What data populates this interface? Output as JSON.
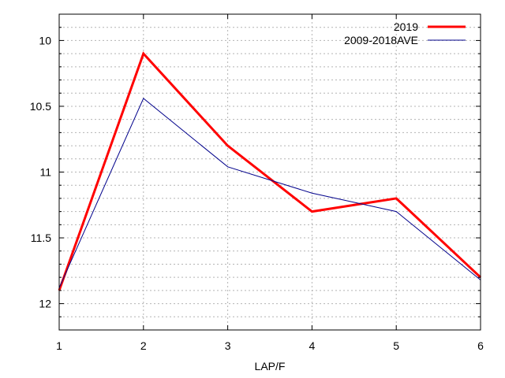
{
  "chart_data": {
    "type": "line",
    "title": "",
    "xlabel": "LAP/F",
    "ylabel": "",
    "x": [
      1,
      2,
      3,
      4,
      5,
      6
    ],
    "xlim": [
      1,
      6
    ],
    "ylim": [
      12.2,
      9.8
    ],
    "y_inverted": true,
    "x_ticks": [
      "1",
      "2",
      "3",
      "4",
      "5",
      "6"
    ],
    "y_ticks": [
      {
        "value": 10,
        "label": "10"
      },
      {
        "value": 10.5,
        "label": "10.5"
      },
      {
        "value": 11,
        "label": "11"
      },
      {
        "value": 11.5,
        "label": "11.5"
      },
      {
        "value": 12,
        "label": "12"
      }
    ],
    "grid": true,
    "legend_position": "top-right",
    "series": [
      {
        "name": "2019",
        "color": "#ff0000",
        "values": [
          11.9,
          10.1,
          10.8,
          11.3,
          11.2,
          11.8
        ]
      },
      {
        "name": "2009-2018AVE",
        "color": "#00008b",
        "values": [
          11.88,
          10.44,
          10.96,
          11.16,
          11.3,
          11.82
        ]
      }
    ]
  }
}
